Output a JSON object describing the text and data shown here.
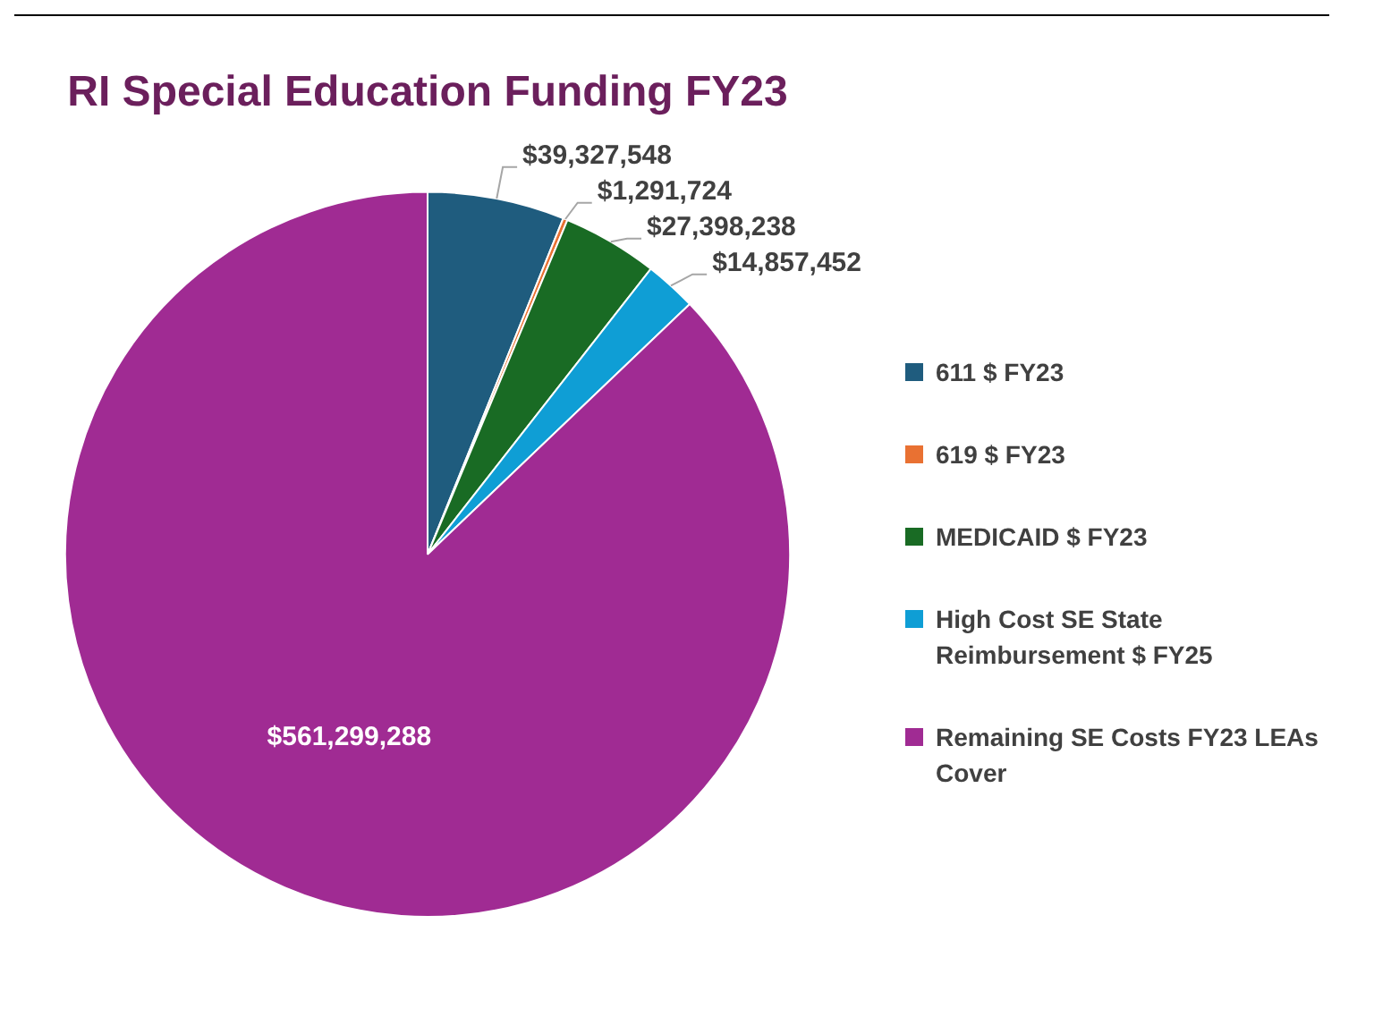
{
  "chart_data": {
    "type": "pie",
    "title": "RI Special Education Funding FY23",
    "categories": [
      "611 $ FY23",
      "619 $ FY23",
      "MEDICAID $ FY23",
      "High Cost SE State Reimbursement $ FY25",
      "Remaining SE Costs FY23 LEAs Cover"
    ],
    "values": [
      39327548,
      1291724,
      27398238,
      14857452,
      561299288
    ],
    "colors": [
      "#1f5c7e",
      "#e97132",
      "#196b24",
      "#0f9ed5",
      "#a02b93"
    ],
    "value_labels": [
      "$39,327,548",
      "$1,291,724",
      "$27,398,238",
      "$14,857,452",
      "$561,299,288"
    ],
    "legend": "right"
  }
}
